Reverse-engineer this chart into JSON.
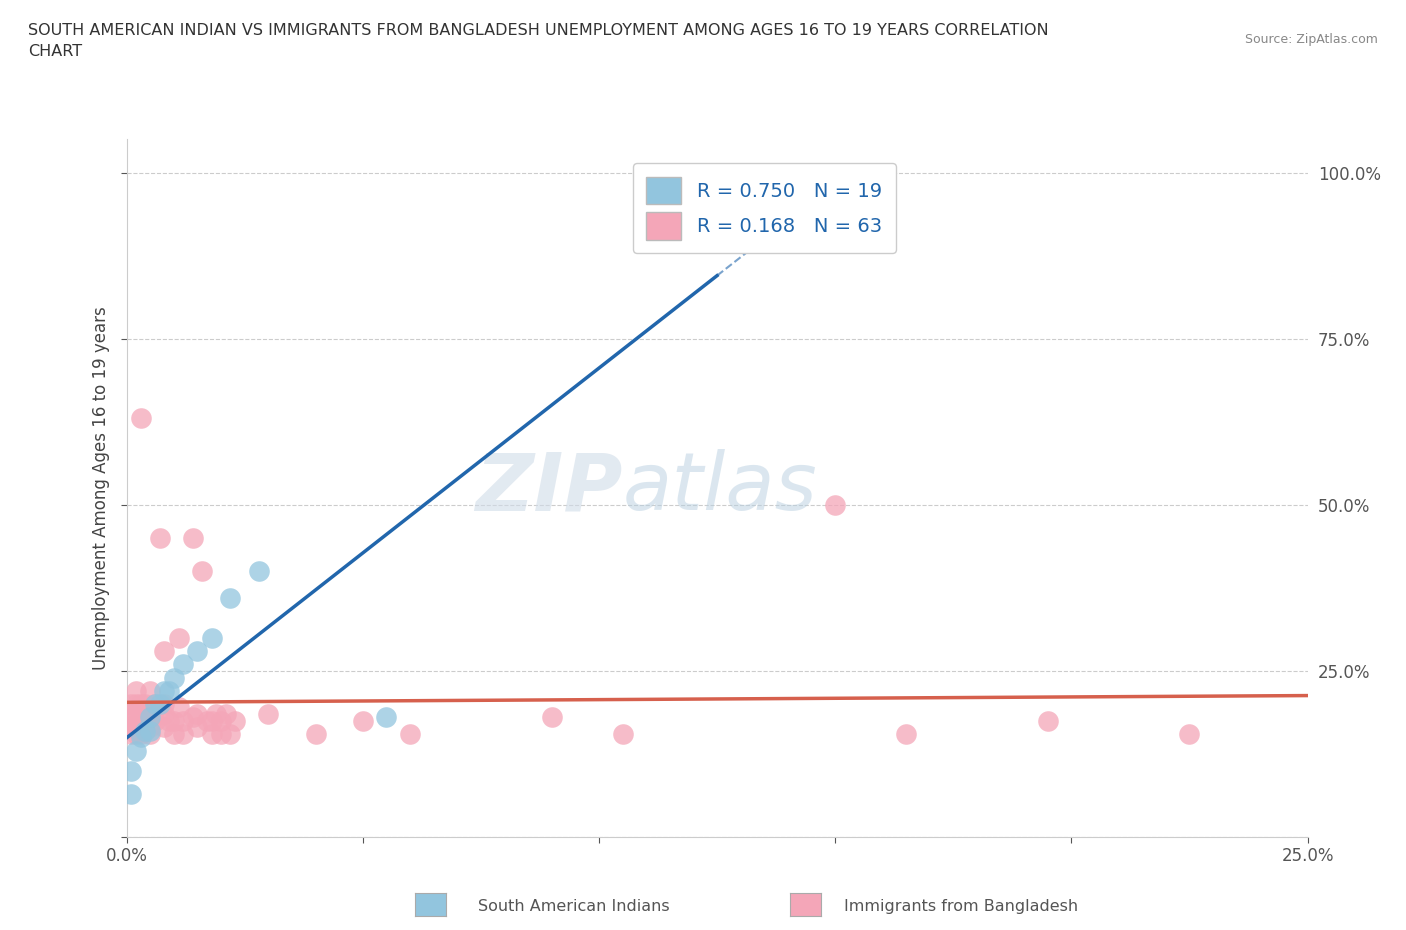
{
  "title": "SOUTH AMERICAN INDIAN VS IMMIGRANTS FROM BANGLADESH UNEMPLOYMENT AMONG AGES 16 TO 19 YEARS CORRELATION\nCHART",
  "source": "Source: ZipAtlas.com",
  "ylabel": "Unemployment Among Ages 16 to 19 years",
  "xlim": [
    0.0,
    0.25
  ],
  "ylim": [
    0.0,
    1.05
  ],
  "blue_color": "#92c5de",
  "pink_color": "#f4a6b8",
  "blue_line_color": "#2166ac",
  "pink_line_color": "#d6604d",
  "R_blue": 0.75,
  "N_blue": 19,
  "R_pink": 0.168,
  "N_pink": 63,
  "watermark_zip": "ZIP",
  "watermark_atlas": "atlas",
  "blue_scatter": [
    [
      0.001,
      0.065
    ],
    [
      0.001,
      0.1
    ],
    [
      0.002,
      0.13
    ],
    [
      0.003,
      0.15
    ],
    [
      0.004,
      0.16
    ],
    [
      0.005,
      0.16
    ],
    [
      0.005,
      0.18
    ],
    [
      0.006,
      0.2
    ],
    [
      0.007,
      0.2
    ],
    [
      0.008,
      0.22
    ],
    [
      0.009,
      0.22
    ],
    [
      0.01,
      0.24
    ],
    [
      0.012,
      0.26
    ],
    [
      0.015,
      0.28
    ],
    [
      0.018,
      0.3
    ],
    [
      0.022,
      0.36
    ],
    [
      0.028,
      0.4
    ],
    [
      0.055,
      0.18
    ],
    [
      0.143,
      1.0
    ]
  ],
  "pink_scatter": [
    [
      0.001,
      0.155
    ],
    [
      0.001,
      0.165
    ],
    [
      0.001,
      0.175
    ],
    [
      0.001,
      0.185
    ],
    [
      0.001,
      0.2
    ],
    [
      0.002,
      0.155
    ],
    [
      0.002,
      0.17
    ],
    [
      0.002,
      0.185
    ],
    [
      0.002,
      0.2
    ],
    [
      0.002,
      0.22
    ],
    [
      0.003,
      0.155
    ],
    [
      0.003,
      0.165
    ],
    [
      0.003,
      0.175
    ],
    [
      0.003,
      0.185
    ],
    [
      0.003,
      0.2
    ],
    [
      0.003,
      0.63
    ],
    [
      0.004,
      0.165
    ],
    [
      0.004,
      0.175
    ],
    [
      0.004,
      0.185
    ],
    [
      0.004,
      0.2
    ],
    [
      0.005,
      0.155
    ],
    [
      0.005,
      0.165
    ],
    [
      0.005,
      0.175
    ],
    [
      0.005,
      0.185
    ],
    [
      0.005,
      0.22
    ],
    [
      0.006,
      0.175
    ],
    [
      0.006,
      0.2
    ],
    [
      0.007,
      0.45
    ],
    [
      0.008,
      0.165
    ],
    [
      0.008,
      0.185
    ],
    [
      0.008,
      0.2
    ],
    [
      0.008,
      0.28
    ],
    [
      0.009,
      0.175
    ],
    [
      0.01,
      0.155
    ],
    [
      0.01,
      0.175
    ],
    [
      0.011,
      0.195
    ],
    [
      0.011,
      0.3
    ],
    [
      0.012,
      0.155
    ],
    [
      0.012,
      0.175
    ],
    [
      0.014,
      0.18
    ],
    [
      0.014,
      0.45
    ],
    [
      0.015,
      0.165
    ],
    [
      0.015,
      0.185
    ],
    [
      0.016,
      0.4
    ],
    [
      0.017,
      0.175
    ],
    [
      0.018,
      0.155
    ],
    [
      0.018,
      0.175
    ],
    [
      0.019,
      0.185
    ],
    [
      0.02,
      0.155
    ],
    [
      0.02,
      0.175
    ],
    [
      0.021,
      0.185
    ],
    [
      0.022,
      0.155
    ],
    [
      0.023,
      0.175
    ],
    [
      0.03,
      0.185
    ],
    [
      0.04,
      0.155
    ],
    [
      0.05,
      0.175
    ],
    [
      0.06,
      0.155
    ],
    [
      0.09,
      0.18
    ],
    [
      0.105,
      0.155
    ],
    [
      0.15,
      0.5
    ],
    [
      0.165,
      0.155
    ],
    [
      0.195,
      0.175
    ],
    [
      0.225,
      0.155
    ]
  ],
  "background_color": "#ffffff",
  "grid_color": "#cccccc"
}
